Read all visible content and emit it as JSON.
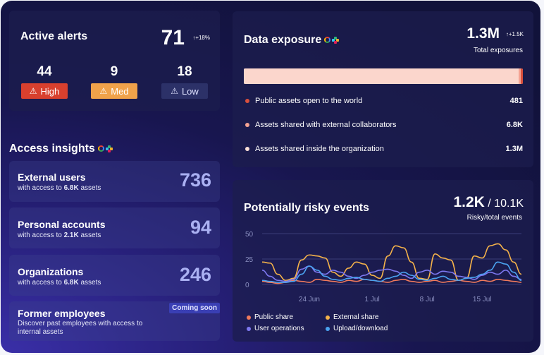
{
  "active_alerts": {
    "title": "Active alerts",
    "total": "71",
    "delta": "↑+18%",
    "severities": [
      {
        "count": "44",
        "label": "High",
        "color": "#d8402e",
        "text_color": "#ffffff"
      },
      {
        "count": "9",
        "label": "Med",
        "color": "#f0a24a",
        "text_color": "#ffffff"
      },
      {
        "count": "18",
        "label": "Low",
        "color": "#2c3168",
        "text_color": "#dfe2ff"
      }
    ]
  },
  "access_insights": {
    "title": "Access insights",
    "items": [
      {
        "title": "External users",
        "sub_prefix": "with access to ",
        "sub_bold": "6.8K",
        "sub_suffix": " assets",
        "value": "736"
      },
      {
        "title": "Personal accounts",
        "sub_prefix": "with access to ",
        "sub_bold": "2.1K",
        "sub_suffix": " assets",
        "value": "94"
      },
      {
        "title": "Organizations",
        "sub_prefix": "with access to ",
        "sub_bold": "6.8K",
        "sub_suffix": " assets",
        "value": "246"
      }
    ],
    "former": {
      "title": "Former employees",
      "badge": "Coming soon",
      "desc_line1": "Discover past employees with access to",
      "desc_line2": "internal assets"
    }
  },
  "data_exposure": {
    "title": "Data exposure",
    "total": "1.3M",
    "delta": "↑+1.5K",
    "total_label": "Total exposures",
    "bar_colors": {
      "world": "#d9503d",
      "external": "#f4a393",
      "internal": "#fbd6cc"
    },
    "rows": [
      {
        "label": "Public assets open to the world",
        "value": "481",
        "color": "#d9503d"
      },
      {
        "label": "Assets shared with external collaborators",
        "value": "6.8K",
        "color": "#f4a393"
      },
      {
        "label": "Assets shared inside the organization",
        "value": "1.3M",
        "color": "#fbe0d8"
      }
    ]
  },
  "risky_events": {
    "title": "Potentially risky events",
    "risky": "1.2K",
    "total": " / 10.1K",
    "sub": "Risky/total events",
    "legend": [
      {
        "label": "Public share",
        "color": "#f07a5c"
      },
      {
        "label": "External share",
        "color": "#f4b24a"
      },
      {
        "label": "User operations",
        "color": "#7d78f0"
      },
      {
        "label": "Upload/download",
        "color": "#4aa3f0"
      }
    ]
  },
  "chart_data": {
    "type": "line",
    "y_ticks": [
      "50",
      "25",
      "0"
    ],
    "x_ticks": [
      "24 Jun",
      "1 Jul",
      "8 Jul",
      "15 Jul"
    ],
    "ylim": [
      0,
      50
    ],
    "grid": true,
    "series": [
      {
        "name": "Public share",
        "color": "#f07a5c",
        "values": [
          3,
          2,
          1,
          2,
          4,
          3,
          2,
          5,
          4,
          3,
          2,
          4,
          3,
          5,
          4,
          3,
          2,
          4,
          5,
          3,
          2,
          3,
          4,
          2,
          3,
          4,
          3,
          2,
          4,
          3,
          5,
          4,
          3,
          2
        ]
      },
      {
        "name": "External share",
        "color": "#f4b24a",
        "values": [
          22,
          21,
          10,
          4,
          6,
          24,
          29,
          28,
          26,
          12,
          8,
          16,
          22,
          20,
          9,
          6,
          28,
          38,
          36,
          22,
          6,
          5,
          30,
          26,
          24,
          4,
          6,
          28,
          26,
          38,
          40,
          34,
          22,
          10
        ]
      },
      {
        "name": "User operations",
        "color": "#7d78f0",
        "values": [
          14,
          8,
          4,
          3,
          5,
          15,
          18,
          12,
          10,
          14,
          12,
          8,
          6,
          9,
          12,
          14,
          15,
          13,
          9,
          6,
          12,
          14,
          10,
          13,
          12,
          8,
          7,
          5,
          9,
          12,
          10,
          14,
          8,
          5
        ]
      },
      {
        "name": "Upload/download",
        "color": "#4aa3f0",
        "values": [
          4,
          3,
          2,
          2,
          3,
          10,
          18,
          14,
          8,
          5,
          4,
          6,
          7,
          5,
          4,
          3,
          6,
          8,
          12,
          9,
          5,
          4,
          6,
          8,
          5,
          4,
          6,
          7,
          10,
          14,
          22,
          20,
          12,
          4
        ]
      }
    ]
  }
}
